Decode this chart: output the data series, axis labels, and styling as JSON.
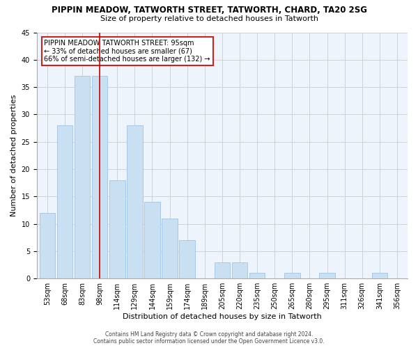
{
  "title": "PIPPIN MEADOW, TATWORTH STREET, TATWORTH, CHARD, TA20 2SG",
  "subtitle": "Size of property relative to detached houses in Tatworth",
  "xlabel": "Distribution of detached houses by size in Tatworth",
  "ylabel": "Number of detached properties",
  "bar_labels": [
    "53sqm",
    "68sqm",
    "83sqm",
    "98sqm",
    "114sqm",
    "129sqm",
    "144sqm",
    "159sqm",
    "174sqm",
    "189sqm",
    "205sqm",
    "220sqm",
    "235sqm",
    "250sqm",
    "265sqm",
    "280sqm",
    "295sqm",
    "311sqm",
    "326sqm",
    "341sqm",
    "356sqm"
  ],
  "bar_values": [
    12,
    28,
    37,
    37,
    18,
    28,
    14,
    11,
    7,
    0,
    3,
    3,
    1,
    0,
    1,
    0,
    1,
    0,
    0,
    1,
    0
  ],
  "bar_color": "#c9dff2",
  "bar_edge_color": "#a8c8e8",
  "grid_color": "#cccccc",
  "background_color": "#ffffff",
  "plot_bg_color": "#eef4fc",
  "vline_x": 3,
  "vline_color": "#cc0000",
  "annotation_text": "PIPPIN MEADOW TATWORTH STREET: 95sqm\n← 33% of detached houses are smaller (67)\n66% of semi-detached houses are larger (132) →",
  "annotation_box_color": "#ffffff",
  "annotation_box_edge": "#cc2222",
  "ylim": [
    0,
    45
  ],
  "footnote": "Contains HM Land Registry data © Crown copyright and database right 2024.\nContains public sector information licensed under the Open Government Licence v3.0.",
  "title_fontsize": 8.5,
  "subtitle_fontsize": 8,
  "tick_fontsize": 7,
  "ylabel_fontsize": 8,
  "xlabel_fontsize": 8,
  "footnote_fontsize": 5.5
}
